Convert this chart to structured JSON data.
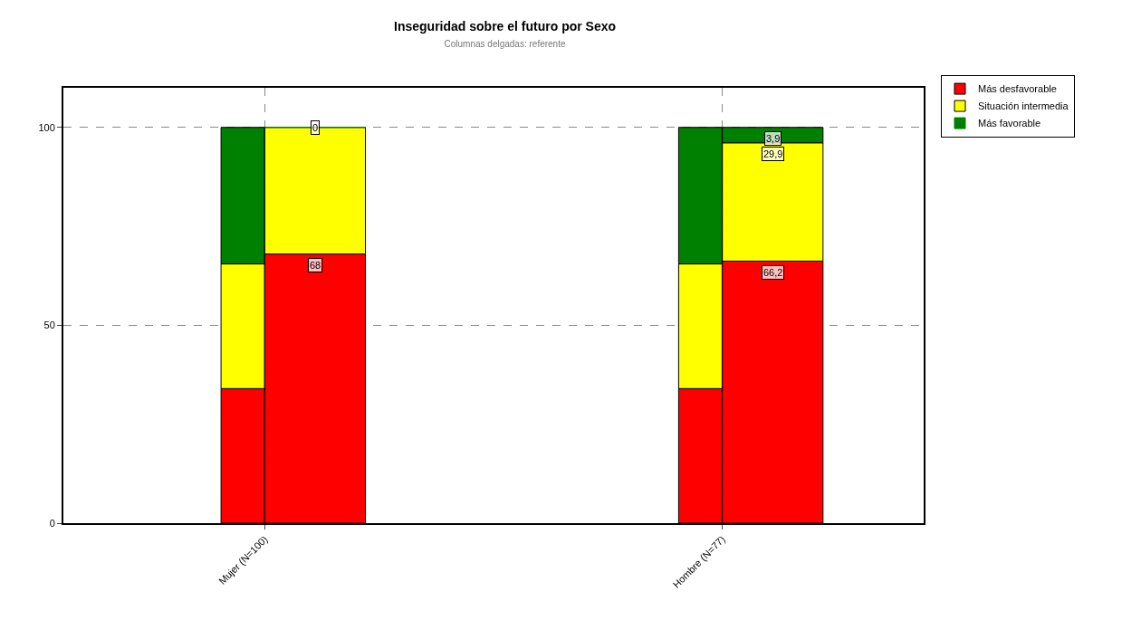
{
  "chart_data": [
    {
      "type": "bar",
      "title": "Inseguridad sobre el futuro por Sexo",
      "subtitle": "Columnas delgadas: referente",
      "categories": [
        "Mujer (N=100)",
        "Hombre (N=77)"
      ],
      "stacked": true,
      "series": [
        {
          "name": "Más desfavorable",
          "color": "#ff0000",
          "values": [
            68,
            66.2
          ],
          "value_labels": [
            "68",
            "66,2"
          ]
        },
        {
          "name": "Situación intermedia",
          "color": "#ffff00",
          "values": [
            32,
            29.9
          ],
          "value_labels": [
            null,
            "29,9"
          ]
        },
        {
          "name": "Más favorable",
          "color": "#008000",
          "values": [
            0,
            3.9
          ],
          "value_labels": [
            "0",
            "3,9"
          ]
        }
      ],
      "ylim": [
        0,
        110
      ],
      "yticks": [
        0,
        50,
        100
      ],
      "grid": true,
      "legend": "top right"
    },
    {
      "type": "bar",
      "stacked": true,
      "series": [
        {
          "color": "#ff0000",
          "values": [
            34,
            34
          ]
        },
        {
          "color": "#ffff00",
          "values": [
            31.5,
            31.5
          ]
        },
        {
          "color": "#008000",
          "values": [
            34.5,
            34.5
          ]
        }
      ],
      "ylim": [
        0,
        110
      ],
      "yticks": [
        0,
        50,
        100
      ],
      "tick_labels": false
    }
  ]
}
